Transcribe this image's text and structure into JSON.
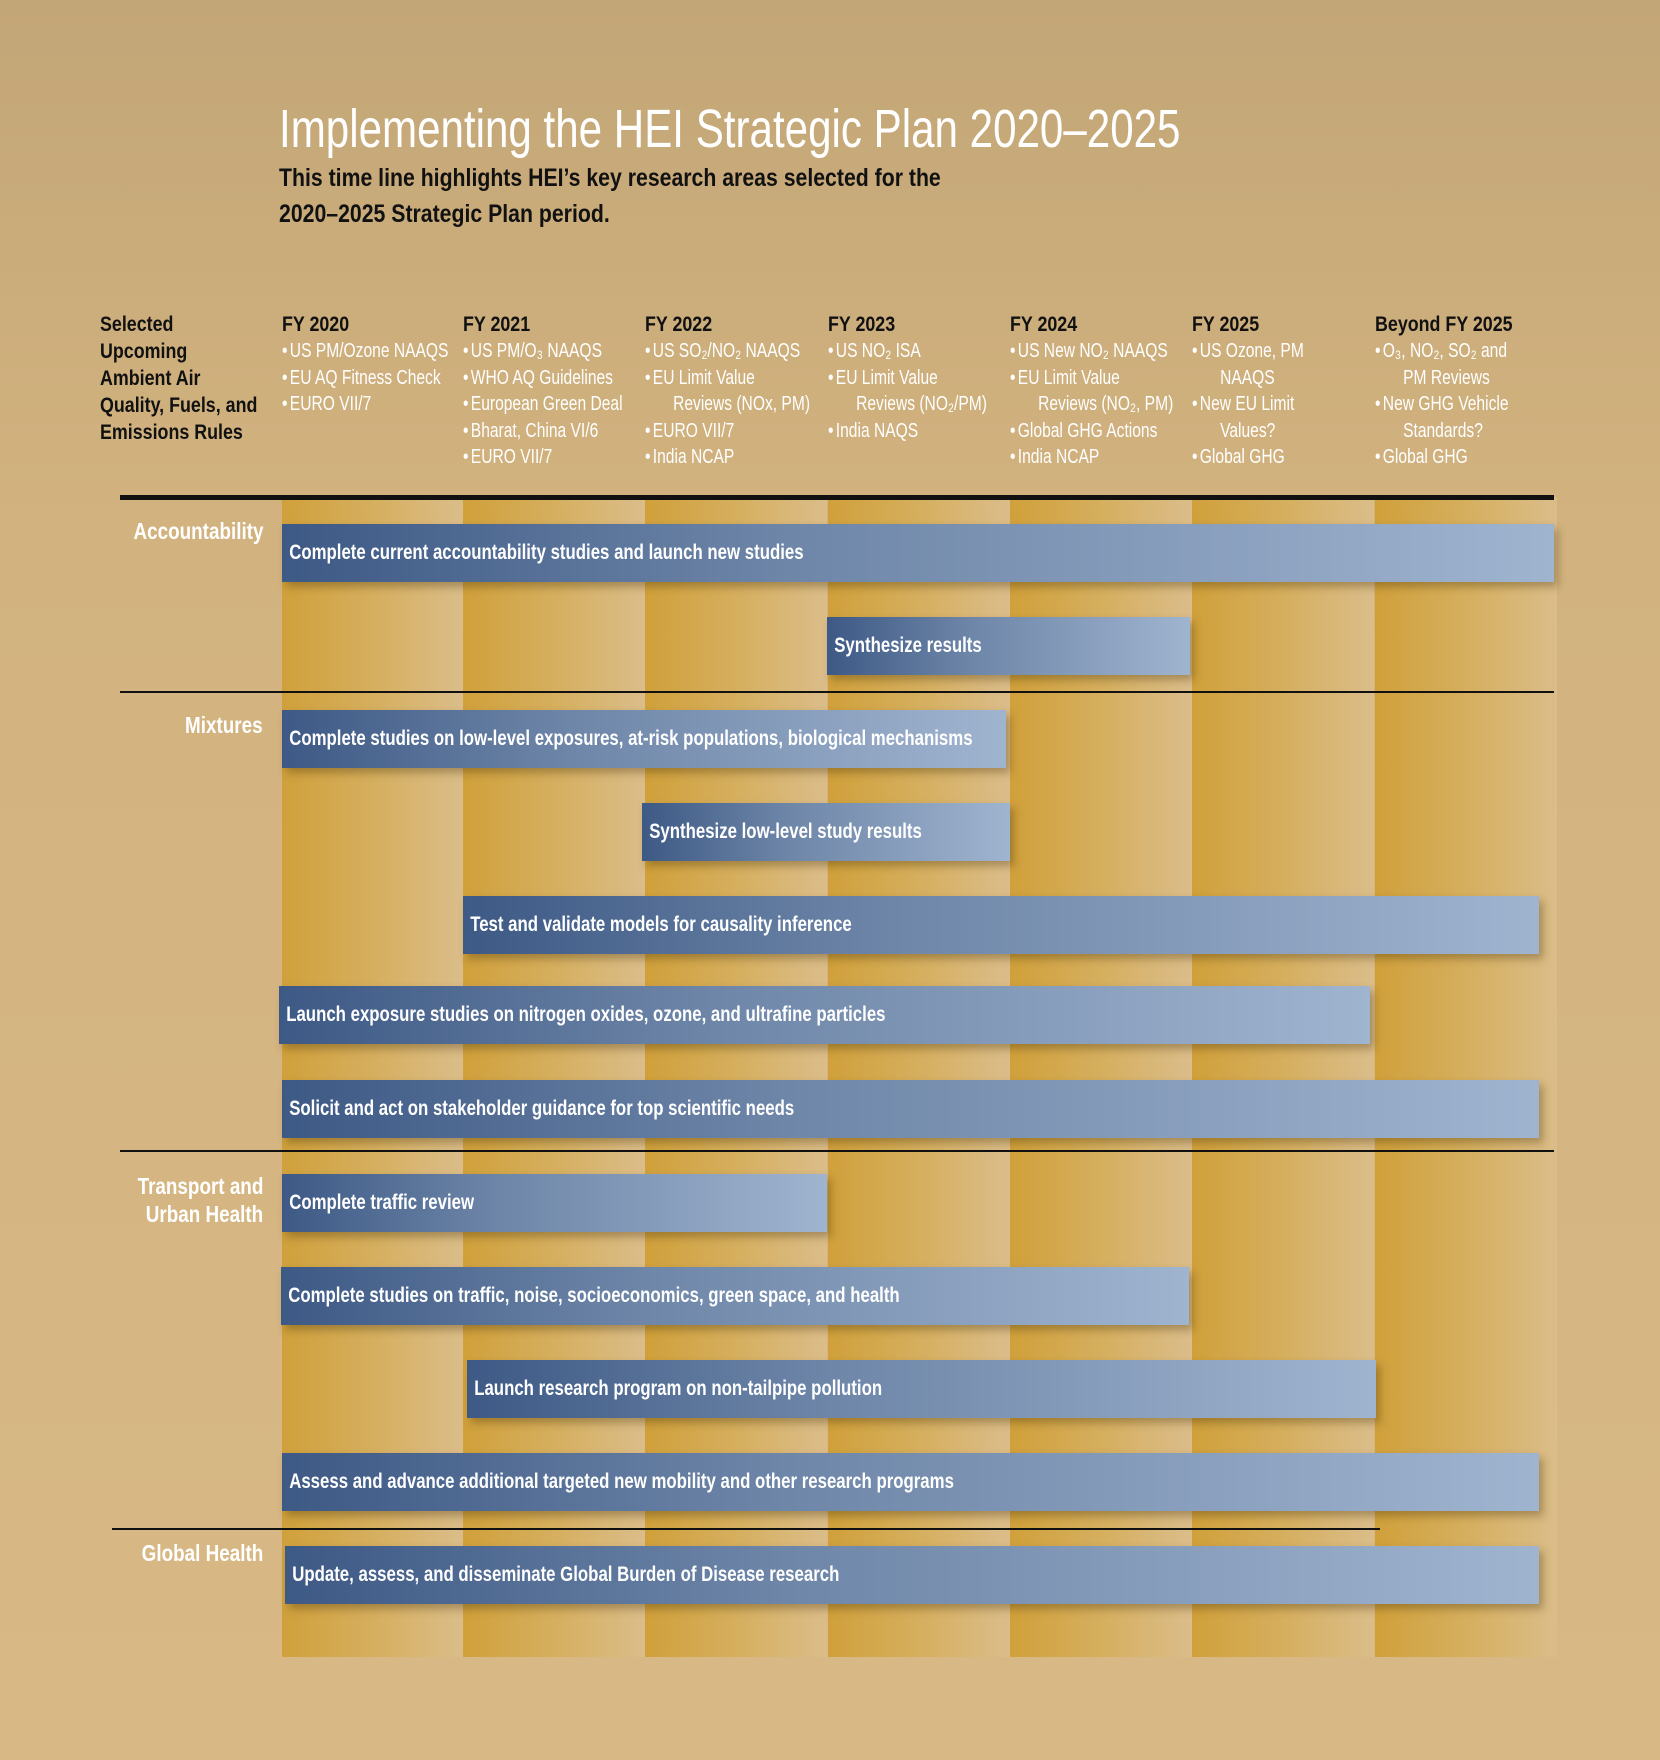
{
  "title": "Implementing the HEI Strategic Plan 2020–2025",
  "subtitle": [
    "This time line highlights HEI’s key research areas selected for the",
    "2020–2025 Strategic Plan period."
  ],
  "rules_label": [
    "Selected",
    "Upcoming",
    "Ambient Air",
    "Quality, Fuels, and",
    "Emissions Rules"
  ],
  "columns": [
    {
      "heading": "FY 2020",
      "items": [
        [
          "US PM/Ozone NAAQS"
        ],
        [
          "EU AQ Fitness Check"
        ],
        [
          "EURO VII/7"
        ]
      ]
    },
    {
      "heading": "FY 2021",
      "items": [
        [
          "US PM/O₃ NAAQS"
        ],
        [
          "WHO AQ Guidelines"
        ],
        [
          "European Green Deal"
        ],
        [
          "Bharat, China VI/6"
        ],
        [
          "EURO VII/7"
        ]
      ]
    },
    {
      "heading": "FY 2022",
      "items": [
        [
          "US SO₂/NO₂ NAAQS"
        ],
        [
          "EU Limit Value",
          "Reviews (NOx, PM)"
        ],
        [
          "EURO VII/7"
        ],
        [
          "India NCAP"
        ]
      ]
    },
    {
      "heading": "FY 2023",
      "items": [
        [
          "US NO₂ ISA"
        ],
        [
          "EU Limit Value",
          "Reviews (NO₂/PM)"
        ],
        [
          "India NAQS"
        ]
      ]
    },
    {
      "heading": "FY 2024",
      "items": [
        [
          "US New NO₂ NAAQS"
        ],
        [
          "EU Limit Value",
          "Reviews (NO₂, PM)"
        ],
        [
          "Global GHG Actions"
        ],
        [
          "India NCAP"
        ]
      ]
    },
    {
      "heading": "FY 2025",
      "items": [
        [
          "US Ozone, PM",
          "NAAQS"
        ],
        [
          "New EU Limit",
          "Values?"
        ],
        [
          "Global GHG"
        ]
      ]
    },
    {
      "heading": "Beyond FY 2025",
      "items": [
        [
          "O₃, NO₂, SO₂ and",
          "PM Reviews"
        ],
        [
          "New GHG Vehicle",
          "Standards?"
        ],
        [
          "Global GHG"
        ]
      ]
    }
  ],
  "sections": [
    {
      "label": [
        "Accountability"
      ]
    },
    {
      "label": [
        "Mixtures"
      ]
    },
    {
      "label": [
        "Transport and",
        "Urban Health"
      ]
    },
    {
      "label": [
        "Global Health"
      ]
    }
  ],
  "bars": [
    {
      "section": "Accountability",
      "label": "Complete current accountability studies and launch new studies",
      "start": "FY 2020",
      "end": "Beyond FY 2025"
    },
    {
      "section": "Accountability",
      "label": "Synthesize results",
      "start": "FY 2023",
      "end": "FY 2024"
    },
    {
      "section": "Mixtures",
      "label": "Complete studies on low-level exposures, at-risk populations, biological mechanisms",
      "start": "FY 2020",
      "end": "FY 2023"
    },
    {
      "section": "Mixtures",
      "label": "Synthesize low-level study results",
      "start": "FY 2022",
      "end": "FY 2023"
    },
    {
      "section": "Mixtures",
      "label": "Test and validate models for causality inference",
      "start": "FY 2021",
      "end": "Beyond FY 2025"
    },
    {
      "section": "Mixtures",
      "label": "Launch exposure studies on nitrogen oxides, ozone, and ultrafine particles",
      "start": "FY 2020",
      "end": "FY 2025"
    },
    {
      "section": "Mixtures",
      "label": "Solicit and act on stakeholder guidance for top scientific needs",
      "start": "FY 2020",
      "end": "Beyond FY 2025"
    },
    {
      "section": "Transport and Urban Health",
      "label": "Complete traffic review",
      "start": "FY 2020",
      "end": "FY 2022"
    },
    {
      "section": "Transport and Urban Health",
      "label": "Complete studies on traffic, noise, socioeconomics, green space, and health",
      "start": "FY 2020",
      "end": "FY 2024"
    },
    {
      "section": "Transport and Urban Health",
      "label": "Launch research program on non-tailpipe pollution",
      "start": "FY 2021",
      "end": "FY 2025"
    },
    {
      "section": "Transport and Urban Health",
      "label": "Assess and advance additional targeted new mobility and other research programs",
      "start": "FY 2020",
      "end": "Beyond FY 2025"
    },
    {
      "section": "Global Health",
      "label": "Update, assess, and disseminate Global Burden of Disease research",
      "start": "FY 2020",
      "end": "Beyond FY 2025"
    }
  ]
}
